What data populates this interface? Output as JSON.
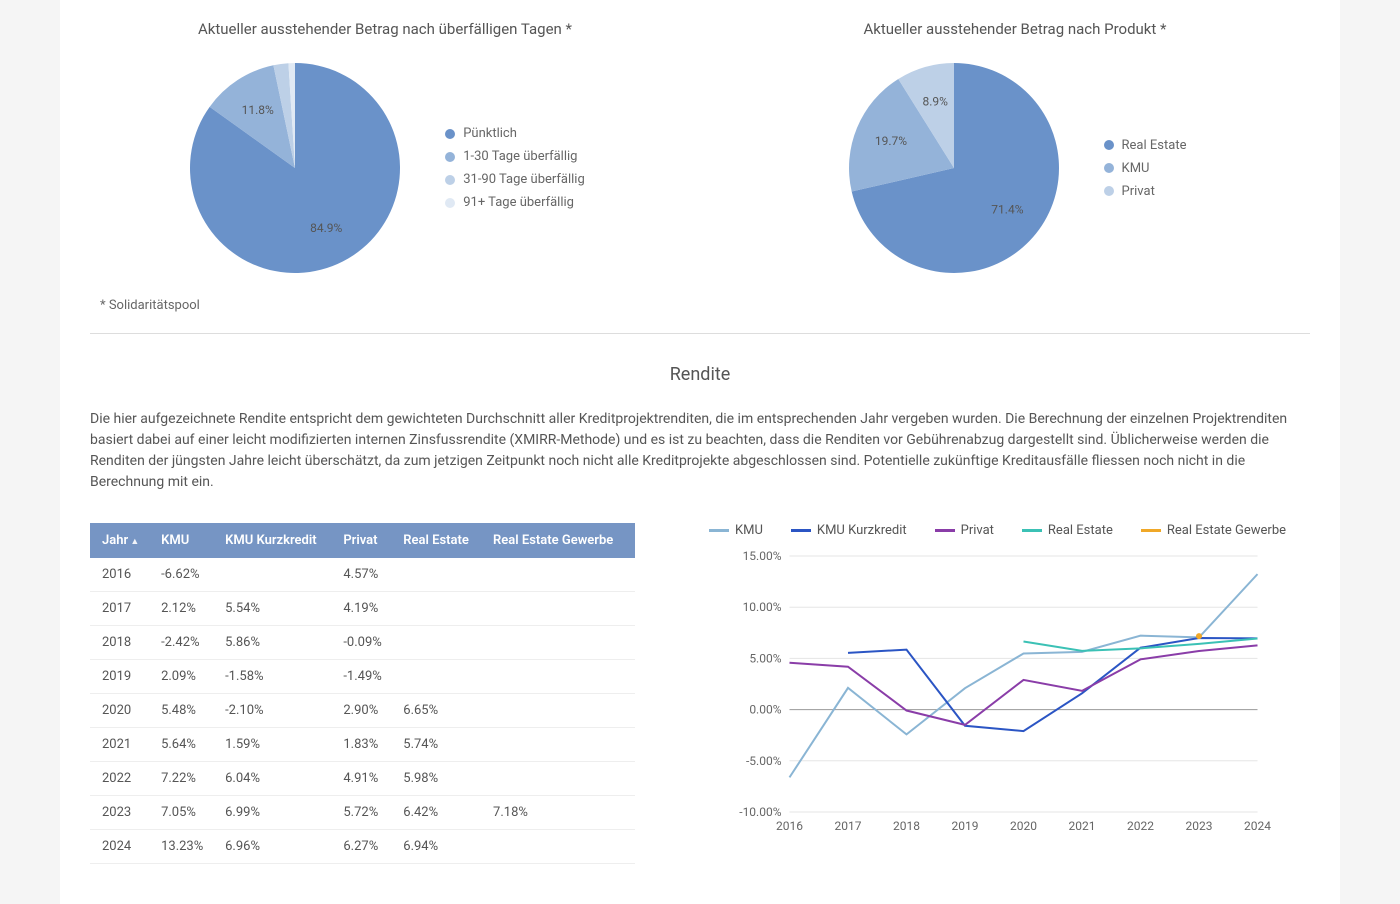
{
  "pies": [
    {
      "title": "Aktueller ausstehender Betrag nach überfälligen Tagen *",
      "type": "pie",
      "slices": [
        {
          "label": "Pünktlich",
          "value": 84.9,
          "color": "#6a92c9",
          "labelText": "84.9%"
        },
        {
          "label": "1-30 Tage überfällig",
          "value": 11.8,
          "color": "#94b3d9",
          "labelText": "11.8%"
        },
        {
          "label": "31-90 Tage überfällig",
          "value": 2.3,
          "color": "#bdd0e7",
          "labelText": ""
        },
        {
          "label": "91+ Tage überfällig",
          "value": 1.0,
          "color": "#e0e9f4",
          "labelText": ""
        }
      ]
    },
    {
      "title": "Aktueller ausstehender Betrag nach Produkt *",
      "type": "pie",
      "slices": [
        {
          "label": "Real Estate",
          "value": 71.4,
          "color": "#6a92c9",
          "labelText": "71.4%"
        },
        {
          "label": "KMU",
          "value": 19.7,
          "color": "#94b3d9",
          "labelText": "19.7%"
        },
        {
          "label": "Privat",
          "value": 8.9,
          "color": "#bdd0e7",
          "labelText": "8.9%"
        }
      ]
    }
  ],
  "footnote": "* Solidaritätspool",
  "rendite": {
    "title": "Rendite",
    "description": "Die hier aufgezeichnete Rendite entspricht dem gewichteten Durchschnitt aller Kreditprojektrenditen, die im entsprechenden Jahr vergeben wurden. Die Berechnung der einzelnen Projektrenditen basiert dabei auf einer leicht modifizierten internen Zinsfussrendite (XMIRR-Methode) und es ist zu beachten, dass die Renditen vor Gebührenabzug dargestellt sind. Üblicherweise werden die Renditen der jüngsten Jahre leicht überschätzt, da zum jetzigen Zeitpunkt noch nicht alle Kreditprojekte abgeschlossen sind. Potentielle zukünftige Kreditausfälle fliessen noch nicht in die Berechnung mit ein."
  },
  "table": {
    "columns": [
      "Jahr",
      "KMU",
      "KMU Kurzkredit",
      "Privat",
      "Real Estate",
      "Real Estate Gewerbe"
    ],
    "sortCol": 0,
    "rows": [
      [
        "2016",
        "-6.62%",
        "",
        "4.57%",
        "",
        ""
      ],
      [
        "2017",
        "2.12%",
        "5.54%",
        "4.19%",
        "",
        ""
      ],
      [
        "2018",
        "-2.42%",
        "5.86%",
        "-0.09%",
        "",
        ""
      ],
      [
        "2019",
        "2.09%",
        "-1.58%",
        "-1.49%",
        "",
        ""
      ],
      [
        "2020",
        "5.48%",
        "-2.10%",
        "2.90%",
        "6.65%",
        ""
      ],
      [
        "2021",
        "5.64%",
        "1.59%",
        "1.83%",
        "5.74%",
        ""
      ],
      [
        "2022",
        "7.22%",
        "6.04%",
        "4.91%",
        "5.98%",
        ""
      ],
      [
        "2023",
        "7.05%",
        "6.99%",
        "5.72%",
        "6.42%",
        "7.18%"
      ],
      [
        "2024",
        "13.23%",
        "6.96%",
        "6.27%",
        "6.94%",
        ""
      ]
    ]
  },
  "lineChart": {
    "type": "line",
    "years": [
      "2016",
      "2017",
      "2018",
      "2019",
      "2020",
      "2021",
      "2022",
      "2023",
      "2024"
    ],
    "ylim": [
      -10,
      15
    ],
    "ytick_step": 5,
    "ytick_labels": [
      "-10.00%",
      "-5.00%",
      "0.00%",
      "5.00%",
      "10.00%",
      "15.00%"
    ],
    "grid_color": "#e5e5e5",
    "background": "#ffffff",
    "series": [
      {
        "name": "KMU",
        "color": "#8ab5d4",
        "data": [
          -6.62,
          2.12,
          -2.42,
          2.09,
          5.48,
          5.64,
          7.22,
          7.05,
          13.23
        ]
      },
      {
        "name": "KMU Kurzkredit",
        "color": "#2b55c4",
        "data": [
          null,
          5.54,
          5.86,
          -1.58,
          -2.1,
          1.59,
          6.04,
          6.99,
          6.96
        ]
      },
      {
        "name": "Privat",
        "color": "#8a3da8",
        "data": [
          4.57,
          4.19,
          -0.09,
          -1.49,
          2.9,
          1.83,
          4.91,
          5.72,
          6.27
        ]
      },
      {
        "name": "Real Estate",
        "color": "#3bc1b5",
        "data": [
          null,
          null,
          null,
          null,
          6.65,
          5.74,
          5.98,
          6.42,
          6.94
        ]
      },
      {
        "name": "Real Estate Gewerbe",
        "color": "#f0a828",
        "data": [
          null,
          null,
          null,
          null,
          null,
          null,
          null,
          7.18,
          null
        ]
      }
    ],
    "line_width": 2
  }
}
